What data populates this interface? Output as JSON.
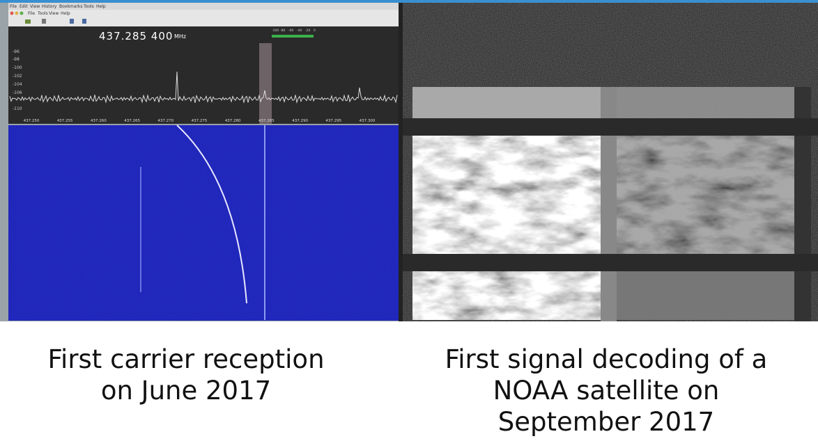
{
  "slide": {
    "left_image": {
      "menu": [
        "File",
        "Edit",
        "View",
        "History",
        "Bookmarks",
        "Tools",
        "Help"
      ],
      "toolbar_menu": [
        "File",
        "Tools",
        "View",
        "Help"
      ],
      "frequency": "437.285 400",
      "frequency_unit": "MHz",
      "meter_ticks": [
        "-100",
        "-80",
        "-60",
        "-40",
        "-20",
        "0"
      ],
      "level_ticks": [
        "-96",
        "-98",
        "-100",
        "-102",
        "-104",
        "-106",
        "-110"
      ],
      "freq_ticks": [
        "437.250",
        "437.255",
        "437.260",
        "437.265",
        "437.270",
        "437.275",
        "437.280",
        "437.285",
        "437.290",
        "437.295",
        "437.300"
      ]
    },
    "captions": {
      "left": [
        "First carrier reception",
        "on June 2017"
      ],
      "right": [
        "First signal decoding of a",
        "NOAA satellite on",
        "September 2017"
      ]
    }
  }
}
